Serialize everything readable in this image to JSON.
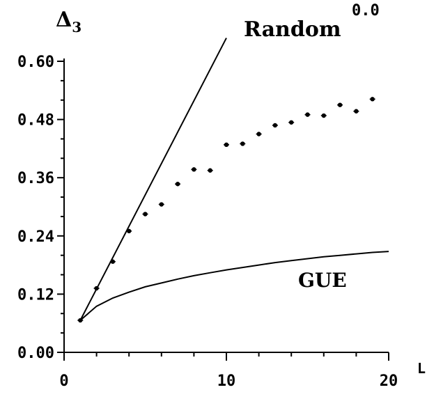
{
  "chart_data": {
    "type": "scatter",
    "title": "",
    "corner_label": "0.0",
    "ylabel": "Δ",
    "ylabel_subscript": "3",
    "xlabel": "L",
    "xlim": [
      0,
      20
    ],
    "ylim": [
      0,
      0.6
    ],
    "x_ticks": [
      0,
      10,
      20
    ],
    "x_tick_labels": [
      "0",
      "10",
      "20"
    ],
    "y_ticks": [
      0,
      0.12,
      0.24,
      0.36,
      0.48,
      0.6
    ],
    "y_tick_labels": [
      "0.00",
      "0.12",
      "0.24",
      "0.36",
      "0.48",
      "0.60"
    ],
    "grid": false,
    "series": [
      {
        "name": "",
        "kind": "points",
        "points": [
          {
            "x": 1,
            "y": 0.066
          },
          {
            "x": 2,
            "y": 0.132
          },
          {
            "x": 3,
            "y": 0.187
          },
          {
            "x": 4,
            "y": 0.25
          },
          {
            "x": 5,
            "y": 0.285
          },
          {
            "x": 6,
            "y": 0.305
          },
          {
            "x": 7,
            "y": 0.347
          },
          {
            "x": 8,
            "y": 0.377
          },
          {
            "x": 9,
            "y": 0.375
          },
          {
            "x": 10,
            "y": 0.428
          },
          {
            "x": 11,
            "y": 0.43
          },
          {
            "x": 12,
            "y": 0.45
          },
          {
            "x": 13,
            "y": 0.468
          },
          {
            "x": 14,
            "y": 0.474
          },
          {
            "x": 15,
            "y": 0.49
          },
          {
            "x": 16,
            "y": 0.488
          },
          {
            "x": 17,
            "y": 0.51
          },
          {
            "x": 18,
            "y": 0.497
          },
          {
            "x": 19,
            "y": 0.522
          }
        ]
      },
      {
        "name": "Random",
        "kind": "line",
        "points": [
          {
            "x": 1,
            "y": 0.066
          },
          {
            "x": 10,
            "y": 0.648
          }
        ]
      },
      {
        "name": "GUE",
        "kind": "line",
        "points": [
          {
            "x": 1,
            "y": 0.066
          },
          {
            "x": 2,
            "y": 0.095
          },
          {
            "x": 3,
            "y": 0.112
          },
          {
            "x": 4,
            "y": 0.124
          },
          {
            "x": 5,
            "y": 0.135
          },
          {
            "x": 6,
            "y": 0.143
          },
          {
            "x": 7,
            "y": 0.151
          },
          {
            "x": 8,
            "y": 0.158
          },
          {
            "x": 9,
            "y": 0.164
          },
          {
            "x": 10,
            "y": 0.17
          },
          {
            "x": 11,
            "y": 0.175
          },
          {
            "x": 12,
            "y": 0.18
          },
          {
            "x": 13,
            "y": 0.185
          },
          {
            "x": 14,
            "y": 0.189
          },
          {
            "x": 15,
            "y": 0.193
          },
          {
            "x": 16,
            "y": 0.197
          },
          {
            "x": 17,
            "y": 0.2
          },
          {
            "x": 18,
            "y": 0.203
          },
          {
            "x": 19,
            "y": 0.206
          },
          {
            "x": 20,
            "y": 0.208
          }
        ]
      }
    ],
    "annotations": [
      "Random",
      "GUE"
    ]
  }
}
